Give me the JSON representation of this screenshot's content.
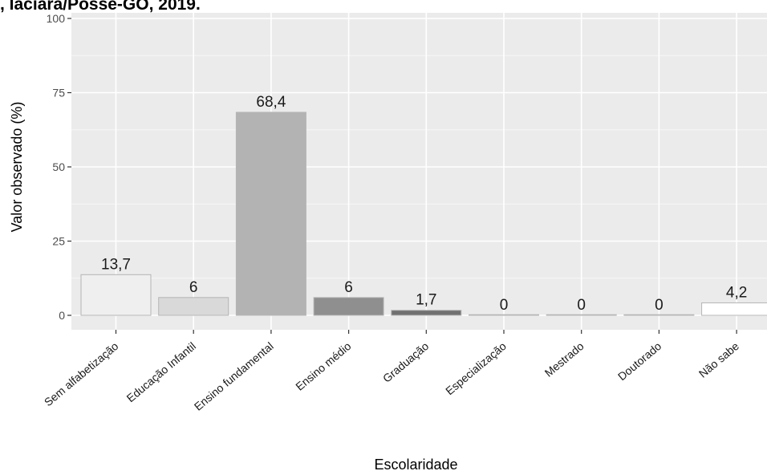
{
  "page_title": ", Iaciara/Posse-GO, 2019.",
  "chart_data": {
    "type": "bar",
    "title": "",
    "xlabel": "Escolaridade",
    "ylabel": "Valor observado (%)",
    "ylim": [
      0,
      100
    ],
    "yticks": [
      0,
      25,
      50,
      75,
      100
    ],
    "grid": true,
    "categories": [
      "Sem alfabetização",
      "Educação Infantil",
      "Ensino fundamental",
      "Ensino médio",
      "Graduação",
      "Especialização",
      "Mestrado",
      "Doutorado",
      "Não sabe"
    ],
    "values": [
      13.7,
      6,
      68.4,
      6,
      1.7,
      0,
      0,
      0,
      4.2
    ],
    "value_labels": [
      "13,7",
      "6",
      "68,4",
      "6",
      "1,7",
      "0",
      "0",
      "0",
      "4,2"
    ],
    "bar_colors": [
      "#efefef",
      "#d9d9d9",
      "#b3b3b3",
      "#8f8f8f",
      "#717171",
      "#c8c8c8",
      "#cfcfcf",
      "#dadada",
      "#ffffff"
    ],
    "panel_color": "#ebebeb"
  }
}
